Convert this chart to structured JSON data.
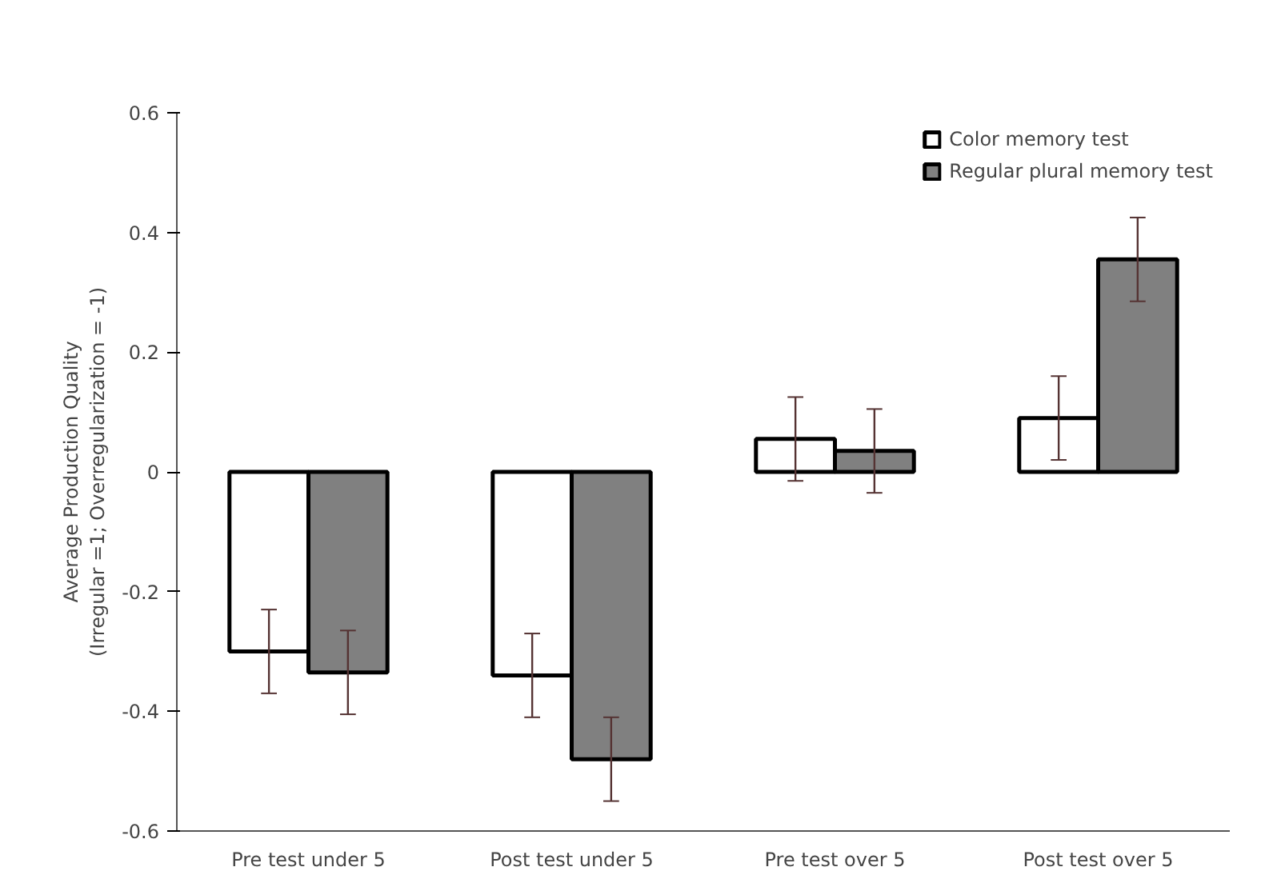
{
  "chart_data": {
    "type": "bar",
    "ylabel": "Average Production Quality\n(Irregular =1; Overregularization = -1)",
    "categories": [
      "Pre test under 5",
      "Post test under 5",
      "Pre test over 5",
      "Post test over 5"
    ],
    "series": [
      {
        "name": "Color memory test",
        "color": "#ffffff",
        "values": [
          -0.3,
          -0.34,
          0.055,
          0.09
        ],
        "errors": [
          0.07,
          0.07,
          0.07,
          0.07
        ]
      },
      {
        "name": "Regular plural memory test",
        "color": "#808080",
        "values": [
          -0.335,
          -0.48,
          0.035,
          0.355
        ],
        "errors": [
          0.07,
          0.07,
          0.07,
          0.07
        ]
      }
    ],
    "ylim": [
      -0.6,
      0.6
    ],
    "yticks": [
      -0.6,
      -0.4,
      -0.2,
      0,
      0.2,
      0.4,
      0.6
    ],
    "grid": false,
    "legend": "top right"
  }
}
